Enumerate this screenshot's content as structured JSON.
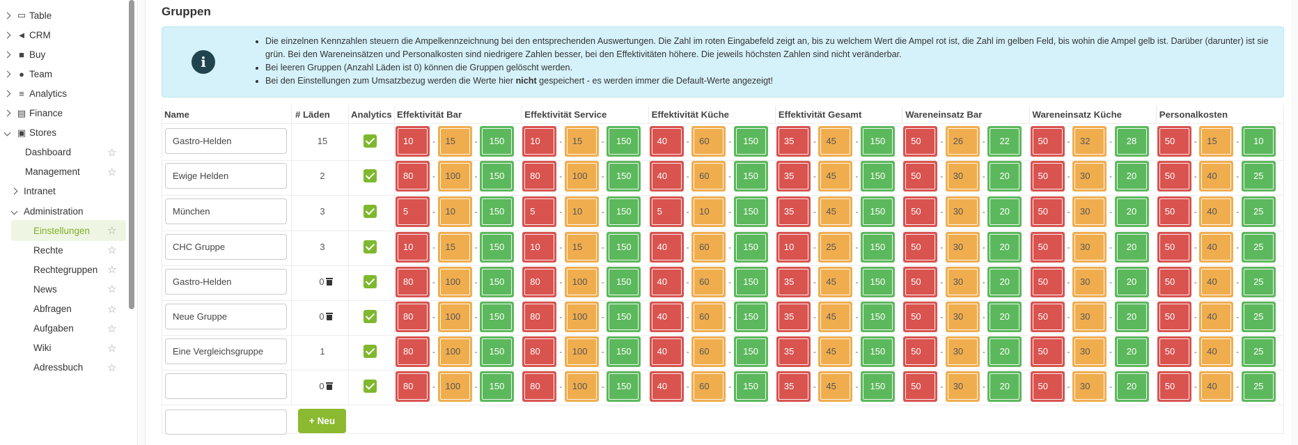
{
  "sidebar": {
    "items": [
      {
        "label": "Table",
        "icon": "book-icon",
        "type": "top"
      },
      {
        "label": "CRM",
        "icon": "megaphone-icon",
        "type": "top"
      },
      {
        "label": "Buy",
        "icon": "truck-icon",
        "type": "top"
      },
      {
        "label": "Team",
        "icon": "users-icon",
        "type": "top"
      },
      {
        "label": "Analytics",
        "icon": "chart-icon",
        "type": "top"
      },
      {
        "label": "Finance",
        "icon": "calculator-icon",
        "type": "top"
      },
      {
        "label": "Stores",
        "icon": "store-icon",
        "type": "top-open"
      },
      {
        "label": "Dashboard",
        "type": "sub"
      },
      {
        "label": "Management",
        "type": "sub"
      },
      {
        "label": "Intranet",
        "type": "group"
      },
      {
        "label": "Administration",
        "type": "group-open"
      },
      {
        "label": "Einstellungen",
        "type": "leaf",
        "active": true
      },
      {
        "label": "Rechte",
        "type": "leaf"
      },
      {
        "label": "Rechtegruppen",
        "type": "leaf"
      },
      {
        "label": "News",
        "type": "leaf"
      },
      {
        "label": "Abfragen",
        "type": "leaf"
      },
      {
        "label": "Aufgaben",
        "type": "leaf"
      },
      {
        "label": "Wiki",
        "type": "leaf"
      },
      {
        "label": "Adressbuch",
        "type": "leaf"
      }
    ]
  },
  "heading": "Gruppen",
  "info": {
    "b1": "Die einzelnen Kennzahlen steuern die Ampelkennzeichnung bei den entsprechenden Auswertungen. Die Zahl im roten Eingabefeld zeigt an, bis zu welchem Wert die Ampel rot ist, die Zahl im gelben Feld, bis wohin die Ampel gelb ist. Darüber (darunter) ist sie grün. Bei den Wareneinsätzen und Personalkosten sind niedrigere Zahlen besser, bei den Effektivitäten höhere. Die jeweils höchsten Zahlen sind nicht veränderbar.",
    "b2": "Bei leeren Gruppen (Anzahl Läden ist 0) können die Gruppen gelöscht werden.",
    "b3_pre": "Bei den Einstellungen zum Umsatzbezug werden die Werte hier ",
    "b3_bold": "nicht",
    "b3_post": " gespeichert - es werden immer die Default-Werte angezeigt!"
  },
  "columns": {
    "name": "Name",
    "laeden": "# Läden",
    "analytics": "Analytics",
    "metrics": [
      "Effektivität Bar",
      "Effektivität Service",
      "Effektivität Küche",
      "Effektivität Gesamt",
      "Wareneinsatz Bar",
      "Wareneinsatz Küche",
      "Personalkosten"
    ]
  },
  "separator": "-",
  "rows": [
    {
      "name": "Gastro-Helden",
      "laeden": "15",
      "deletable": false,
      "analytics": true,
      "values": [
        [
          10,
          15,
          150
        ],
        [
          10,
          15,
          150
        ],
        [
          40,
          60,
          150
        ],
        [
          35,
          45,
          150
        ],
        [
          50,
          26,
          22
        ],
        [
          50,
          32,
          28
        ],
        [
          50,
          15,
          10
        ]
      ]
    },
    {
      "name": "Ewige Helden",
      "laeden": "2",
      "deletable": false,
      "analytics": true,
      "values": [
        [
          80,
          100,
          150
        ],
        [
          80,
          100,
          150
        ],
        [
          40,
          60,
          150
        ],
        [
          35,
          45,
          150
        ],
        [
          50,
          30,
          20
        ],
        [
          50,
          30,
          20
        ],
        [
          50,
          40,
          25
        ]
      ]
    },
    {
      "name": "München",
      "laeden": "3",
      "deletable": false,
      "analytics": true,
      "values": [
        [
          5,
          10,
          150
        ],
        [
          5,
          10,
          150
        ],
        [
          5,
          10,
          150
        ],
        [
          35,
          45,
          150
        ],
        [
          50,
          30,
          20
        ],
        [
          50,
          30,
          20
        ],
        [
          50,
          40,
          25
        ]
      ]
    },
    {
      "name": "CHC Gruppe",
      "laeden": "3",
      "deletable": false,
      "analytics": true,
      "values": [
        [
          10,
          15,
          150
        ],
        [
          10,
          15,
          150
        ],
        [
          40,
          60,
          150
        ],
        [
          10,
          25,
          150
        ],
        [
          50,
          30,
          20
        ],
        [
          50,
          30,
          20
        ],
        [
          50,
          40,
          25
        ]
      ]
    },
    {
      "name": "Gastro-Helden",
      "laeden": "0",
      "deletable": true,
      "analytics": true,
      "values": [
        [
          80,
          100,
          150
        ],
        [
          80,
          100,
          150
        ],
        [
          40,
          60,
          150
        ],
        [
          35,
          45,
          150
        ],
        [
          50,
          30,
          20
        ],
        [
          50,
          30,
          20
        ],
        [
          50,
          40,
          25
        ]
      ]
    },
    {
      "name": "Neue Gruppe",
      "laeden": "0",
      "deletable": true,
      "analytics": true,
      "values": [
        [
          80,
          100,
          150
        ],
        [
          80,
          100,
          150
        ],
        [
          40,
          60,
          150
        ],
        [
          35,
          45,
          150
        ],
        [
          50,
          30,
          20
        ],
        [
          50,
          30,
          20
        ],
        [
          50,
          40,
          25
        ]
      ]
    },
    {
      "name": "Eine Vergleichsgruppe",
      "laeden": "1",
      "deletable": false,
      "analytics": true,
      "values": [
        [
          80,
          100,
          150
        ],
        [
          80,
          100,
          150
        ],
        [
          40,
          60,
          150
        ],
        [
          35,
          45,
          150
        ],
        [
          50,
          30,
          20
        ],
        [
          50,
          30,
          20
        ],
        [
          50,
          40,
          25
        ]
      ]
    },
    {
      "name": "",
      "laeden": "0",
      "deletable": true,
      "analytics": true,
      "values": [
        [
          80,
          100,
          150
        ],
        [
          80,
          100,
          150
        ],
        [
          40,
          60,
          150
        ],
        [
          35,
          45,
          150
        ],
        [
          50,
          30,
          20
        ],
        [
          50,
          30,
          20
        ],
        [
          50,
          40,
          25
        ]
      ]
    }
  ],
  "new_button": "Neu",
  "colors": {
    "accent": "#8bb92f",
    "red": "#d9534f",
    "yellow": "#f0ad4e",
    "green": "#5cb85c",
    "info_bg": "#d5f1f9",
    "info_icon": "#21444f"
  }
}
